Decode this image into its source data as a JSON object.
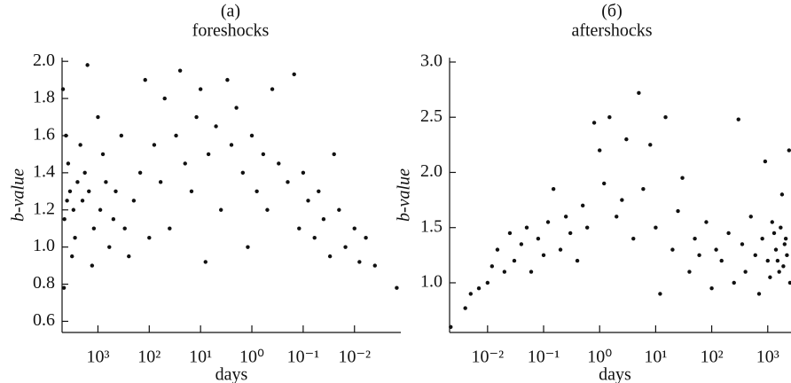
{
  "chart_data": [
    {
      "type": "scatter",
      "title": "(a)",
      "subtitle": "foreshocks",
      "xlabel": "days",
      "ylabel": "b-value",
      "xscale": "log",
      "color": "#111111",
      "xlim": [
        5000,
        0.00125
      ],
      "ylim": [
        0.54,
        2.02
      ],
      "xticks": [
        {
          "value": 1000,
          "label": "10³"
        },
        {
          "value": 100,
          "label": "10²"
        },
        {
          "value": 10,
          "label": "10¹"
        },
        {
          "value": 1,
          "label": "10⁰"
        },
        {
          "value": 0.1,
          "label": "10⁻¹"
        },
        {
          "value": 0.01,
          "label": "10⁻²"
        }
      ],
      "yticks": [
        {
          "value": 2.0,
          "label": "2.0"
        },
        1.8,
        1.6,
        1.4,
        1.2,
        {
          "value": 1.0,
          "label": "1.0"
        },
        0.8,
        0.6
      ],
      "x": [
        4000,
        3500,
        3000,
        2500,
        4500,
        2000,
        1500,
        1200,
        3800,
        2800,
        4200,
        1800,
        900,
        700,
        600,
        500,
        3200,
        2200,
        1000,
        800,
        4800,
        4600,
        1300,
        450,
        350,
        300,
        250,
        200,
        150,
        120,
        100,
        80,
        60,
        50,
        40,
        30,
        25,
        20,
        15,
        12,
        10,
        8,
        7,
        5,
        4,
        3,
        2.5,
        2,
        1.5,
        1.2,
        1,
        0.8,
        0.6,
        0.5,
        0.4,
        0.3,
        0.2,
        0.15,
        0.12,
        0.1,
        0.08,
        0.06,
        0.05,
        0.04,
        0.03,
        0.025,
        0.02,
        0.015,
        0.01,
        0.008,
        0.006,
        0.004,
        0.0015,
        1600
      ],
      "values": [
        1.25,
        1.3,
        1.2,
        1.35,
        1.15,
        1.25,
        1.3,
        1.1,
        1.45,
        1.05,
        1.6,
        1.4,
        1.2,
        1.35,
        1.0,
        1.15,
        0.95,
        1.55,
        1.7,
        1.5,
        1.85,
        0.78,
        0.9,
        1.3,
        1.6,
        1.1,
        0.95,
        1.25,
        1.4,
        1.9,
        1.05,
        1.55,
        1.35,
        1.8,
        1.1,
        1.6,
        1.95,
        1.45,
        1.3,
        1.7,
        1.85,
        0.92,
        1.5,
        1.65,
        1.2,
        1.9,
        1.55,
        1.75,
        1.4,
        1.0,
        1.6,
        1.3,
        1.5,
        1.2,
        1.85,
        1.45,
        1.35,
        1.93,
        1.1,
        1.4,
        1.25,
        1.05,
        1.3,
        1.15,
        0.95,
        1.5,
        1.2,
        1.0,
        1.1,
        0.92,
        1.05,
        0.9,
        0.78,
        1.98
      ]
    },
    {
      "type": "scatter",
      "title": "(б)",
      "subtitle": "aftershocks",
      "xlabel": "days",
      "ylabel": "b-value",
      "xscale": "log",
      "color": "#111111",
      "xlim": [
        0.0021,
        2600
      ],
      "ylim": [
        0.55,
        3.04
      ],
      "xticks": [
        {
          "value": 0.01,
          "label": "10⁻²"
        },
        {
          "value": 0.1,
          "label": "10⁻¹"
        },
        {
          "value": 1,
          "label": "10⁰"
        },
        {
          "value": 10,
          "label": "10¹"
        },
        {
          "value": 100,
          "label": "10²"
        },
        {
          "value": 1000,
          "label": "10³"
        }
      ],
      "yticks": [
        {
          "value": 3.0,
          "label": "3.0"
        },
        2.5,
        {
          "value": 2.0,
          "label": "2.0"
        },
        1.5,
        {
          "value": 1.0,
          "label": "1.0"
        }
      ],
      "x": [
        0.0022,
        0.004,
        0.005,
        0.007,
        0.01,
        0.012,
        0.015,
        0.02,
        0.025,
        0.03,
        0.04,
        0.05,
        0.06,
        0.08,
        0.1,
        0.12,
        0.15,
        0.2,
        0.25,
        0.3,
        0.4,
        0.5,
        0.6,
        0.8,
        1,
        1.2,
        1.5,
        2,
        2.5,
        3,
        4,
        5,
        6,
        8,
        10,
        12,
        15,
        20,
        25,
        30,
        40,
        50,
        60,
        80,
        100,
        120,
        150,
        200,
        250,
        300,
        350,
        400,
        500,
        600,
        700,
        800,
        1000,
        1200,
        1400,
        1600,
        1800,
        2000,
        2200,
        2400,
        2500,
        900,
        1100,
        1300,
        1500,
        1700,
        1900,
        2100
      ],
      "values": [
        0.6,
        0.77,
        0.9,
        0.95,
        1.0,
        1.15,
        1.3,
        1.1,
        1.45,
        1.2,
        1.35,
        1.5,
        1.1,
        1.4,
        1.25,
        1.55,
        1.85,
        1.3,
        1.6,
        1.45,
        1.2,
        1.7,
        1.5,
        2.45,
        2.2,
        1.9,
        2.5,
        1.6,
        1.75,
        2.3,
        1.4,
        2.72,
        1.85,
        2.25,
        1.5,
        0.9,
        2.5,
        1.3,
        1.65,
        1.95,
        1.1,
        1.4,
        1.25,
        1.55,
        0.95,
        1.3,
        1.2,
        1.45,
        1.0,
        2.48,
        1.35,
        1.1,
        1.6,
        1.25,
        0.9,
        1.4,
        1.2,
        1.55,
        1.3,
        1.1,
        1.8,
        1.35,
        1.25,
        2.2,
        1.0,
        2.1,
        1.05,
        1.45,
        1.2,
        1.5,
        1.15,
        1.4
      ]
    }
  ]
}
